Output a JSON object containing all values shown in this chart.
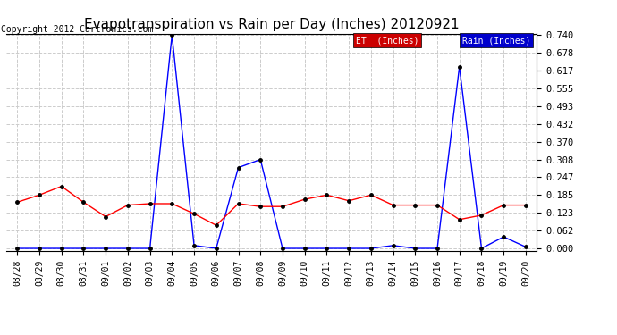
{
  "title": "Evapotranspiration vs Rain per Day (Inches) 20120921",
  "copyright": "Copyright 2012 Cartronics.com",
  "x_labels": [
    "08/28",
    "08/29",
    "08/30",
    "08/31",
    "09/01",
    "09/02",
    "09/03",
    "09/04",
    "09/05",
    "09/06",
    "09/07",
    "09/08",
    "09/09",
    "09/10",
    "09/11",
    "09/12",
    "09/13",
    "09/14",
    "09/15",
    "09/16",
    "09/17",
    "09/18",
    "09/19",
    "09/20"
  ],
  "rain_inches": [
    0.0,
    0.0,
    0.0,
    0.0,
    0.0,
    0.0,
    0.0,
    0.74,
    0.01,
    0.0,
    0.28,
    0.308,
    0.0,
    0.0,
    0.0,
    0.0,
    0.0,
    0.01,
    0.0,
    0.0,
    0.63,
    0.0,
    0.04,
    0.005
  ],
  "et_inches": [
    0.16,
    0.185,
    0.215,
    0.16,
    0.11,
    0.15,
    0.155,
    0.155,
    0.12,
    0.08,
    0.155,
    0.145,
    0.145,
    0.17,
    0.185,
    0.165,
    0.185,
    0.15,
    0.15,
    0.15,
    0.1,
    0.115,
    0.15,
    0.15
  ],
  "rain_color": "#0000ff",
  "et_color": "#ff0000",
  "background_color": "#ffffff",
  "grid_color": "#cccccc",
  "ylim": [
    0.0,
    0.74
  ],
  "yticks": [
    0.0,
    0.062,
    0.123,
    0.185,
    0.247,
    0.308,
    0.37,
    0.432,
    0.493,
    0.555,
    0.617,
    0.678,
    0.74
  ],
  "title_fontsize": 11,
  "copyright_fontsize": 7,
  "legend_rain_label": "Rain (Inches)",
  "legend_et_label": "ET  (Inches)",
  "legend_rain_bg": "#0000cc",
  "legend_et_bg": "#cc0000",
  "tick_fontsize": 7,
  "ytick_fontsize": 7.5
}
